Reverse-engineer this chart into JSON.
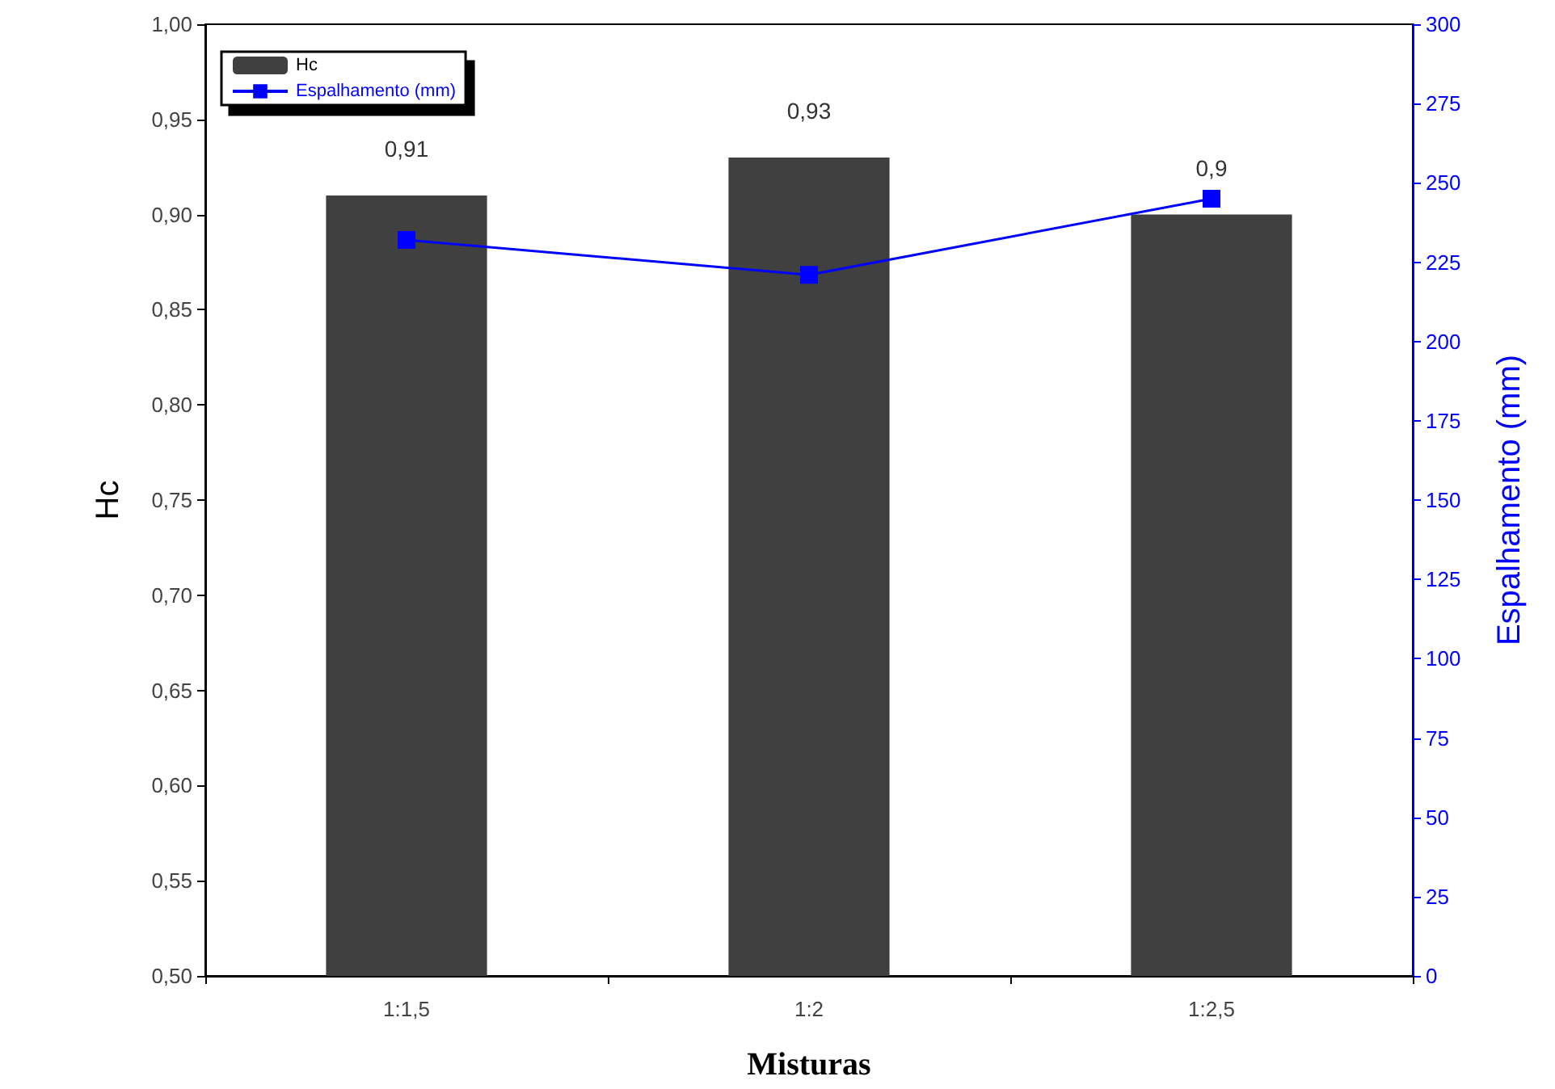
{
  "chart_data": {
    "type": "bar",
    "xlabel": "Misturas",
    "ylabel": "Hc",
    "y2label": "Espalhamento (mm)",
    "categories": [
      "1:1,5",
      "1:2",
      "1:2,5"
    ],
    "series": [
      {
        "name": "Hc",
        "color": "#404040",
        "values": [
          0.91,
          0.93,
          0.9
        ],
        "value_labels": [
          "0,91",
          "0,93",
          "0,9"
        ]
      },
      {
        "name": "Espalhamento (mm)",
        "type": "line",
        "axis": "y2",
        "color": "#0000ff",
        "values": [
          232,
          221,
          245
        ],
        "marker": "square",
        "line_style": "solid"
      }
    ],
    "ylim": [
      0.5,
      1.0
    ],
    "yticks": [
      {
        "value": 0.5,
        "label": "0,50"
      },
      {
        "value": 0.55,
        "label": "0,55"
      },
      {
        "value": 0.6,
        "label": "0,60"
      },
      {
        "value": 0.65,
        "label": "0,65"
      },
      {
        "value": 0.7,
        "label": "0,70"
      },
      {
        "value": 0.75,
        "label": "0,75"
      },
      {
        "value": 0.8,
        "label": "0,80"
      },
      {
        "value": 0.85,
        "label": "0,85"
      },
      {
        "value": 0.9,
        "label": "0,90"
      },
      {
        "value": 0.95,
        "label": "0,95"
      },
      {
        "value": 1.0,
        "label": "1,00"
      }
    ],
    "y2lim": [
      0,
      300
    ],
    "y2ticks": [
      0,
      25,
      50,
      75,
      100,
      125,
      150,
      175,
      200,
      225,
      250,
      275,
      300
    ],
    "grid": false,
    "legend": "top left"
  }
}
